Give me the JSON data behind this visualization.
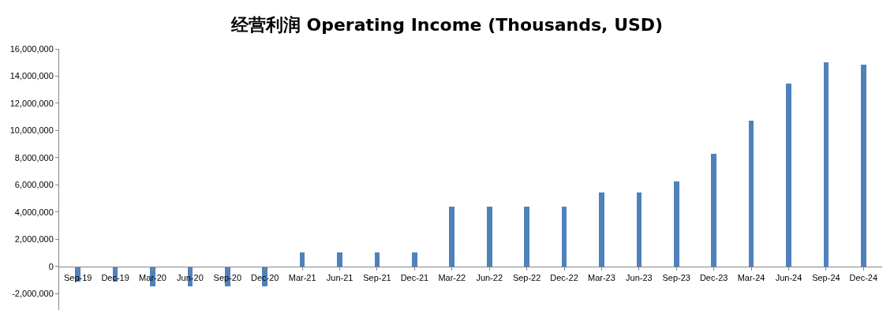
{
  "chart_data": {
    "type": "bar",
    "title": "经营利润 Operating Income (Thousands, USD)",
    "categories": [
      "Sep-19",
      "Dec-19",
      "Mar-20",
      "Jun-20",
      "Sep-20",
      "Dec-20",
      "Mar-21",
      "Jun-21",
      "Sep-21",
      "Dec-21",
      "Mar-22",
      "Jun-22",
      "Sep-22",
      "Dec-22",
      "Mar-23",
      "Jun-23",
      "Sep-23",
      "Dec-23",
      "Mar-24",
      "Jun-24",
      "Sep-24",
      "Dec-24"
    ],
    "values": [
      -1100000,
      -1100000,
      -1450000,
      -1450000,
      -1450000,
      -1450000,
      1050000,
      1050000,
      1050000,
      1050000,
      4400000,
      4400000,
      4400000,
      4400000,
      5450000,
      5450000,
      6250000,
      8300000,
      10750000,
      13450000,
      15000000,
      14850000
    ],
    "color": "#4f81bd",
    "ylim": [
      -3200000,
      16000000
    ],
    "yticks": [
      {
        "value": -2000000,
        "label": "-2,000,000"
      },
      0,
      {
        "value": 2000000,
        "label": "2,000,000"
      },
      {
        "value": 4000000,
        "label": "4,000,000"
      },
      {
        "value": 6000000,
        "label": "6,000,000"
      },
      {
        "value": 8000000,
        "label": "8,000,000"
      },
      {
        "value": 10000000,
        "label": "10,000,000"
      },
      {
        "value": 12000000,
        "label": "12,000,000"
      },
      {
        "value": 14000000,
        "label": "14,000,000"
      },
      {
        "value": 16000000,
        "label": "16,000,000"
      }
    ],
    "grid": false
  }
}
